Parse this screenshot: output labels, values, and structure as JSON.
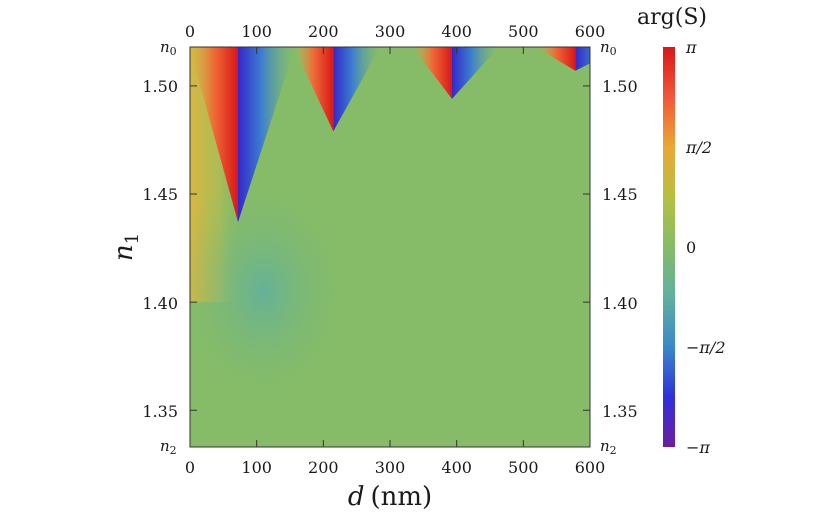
{
  "chart_data": {
    "type": "heatmap",
    "title": "",
    "x_axis": {
      "label_var": "d",
      "label_unit": "(nm)",
      "range": [
        0,
        600
      ],
      "ticks": [
        0,
        100,
        200,
        300,
        400,
        500,
        600
      ],
      "tick_labels": [
        "0",
        "100",
        "200",
        "300",
        "400",
        "500",
        "600"
      ],
      "mirrored_top": true
    },
    "y_axis": {
      "label_var": "n",
      "label_sub": "1",
      "range": [
        1.333,
        1.518
      ],
      "ticks": [
        1.35,
        1.4,
        1.45,
        1.5
      ],
      "tick_labels": [
        "1.35",
        "1.40",
        "1.45",
        "1.50"
      ],
      "mirrored_right": true,
      "top_limit_label": {
        "var": "n",
        "sub": "0"
      },
      "bottom_limit_label": {
        "var": "n",
        "sub": "2"
      }
    },
    "colorbar": {
      "title": "arg(S)",
      "range": [
        -3.14159,
        3.14159
      ],
      "tick_labels": [
        "π",
        "π/2",
        "0",
        "−π/2",
        "−π"
      ],
      "colormap": [
        "#6a1fa0",
        "#3030d8",
        "#3a88c8",
        "#60b0a0",
        "#86bc68",
        "#b6c040",
        "#e8a838",
        "#f05838",
        "#d81818"
      ]
    },
    "phase_singularities": [
      {
        "d": 72,
        "n1": 1.437
      },
      {
        "d": 215,
        "n1": 1.479
      },
      {
        "d": 393,
        "n1": 1.494
      },
      {
        "d": 578,
        "n1": 1.507
      }
    ]
  }
}
